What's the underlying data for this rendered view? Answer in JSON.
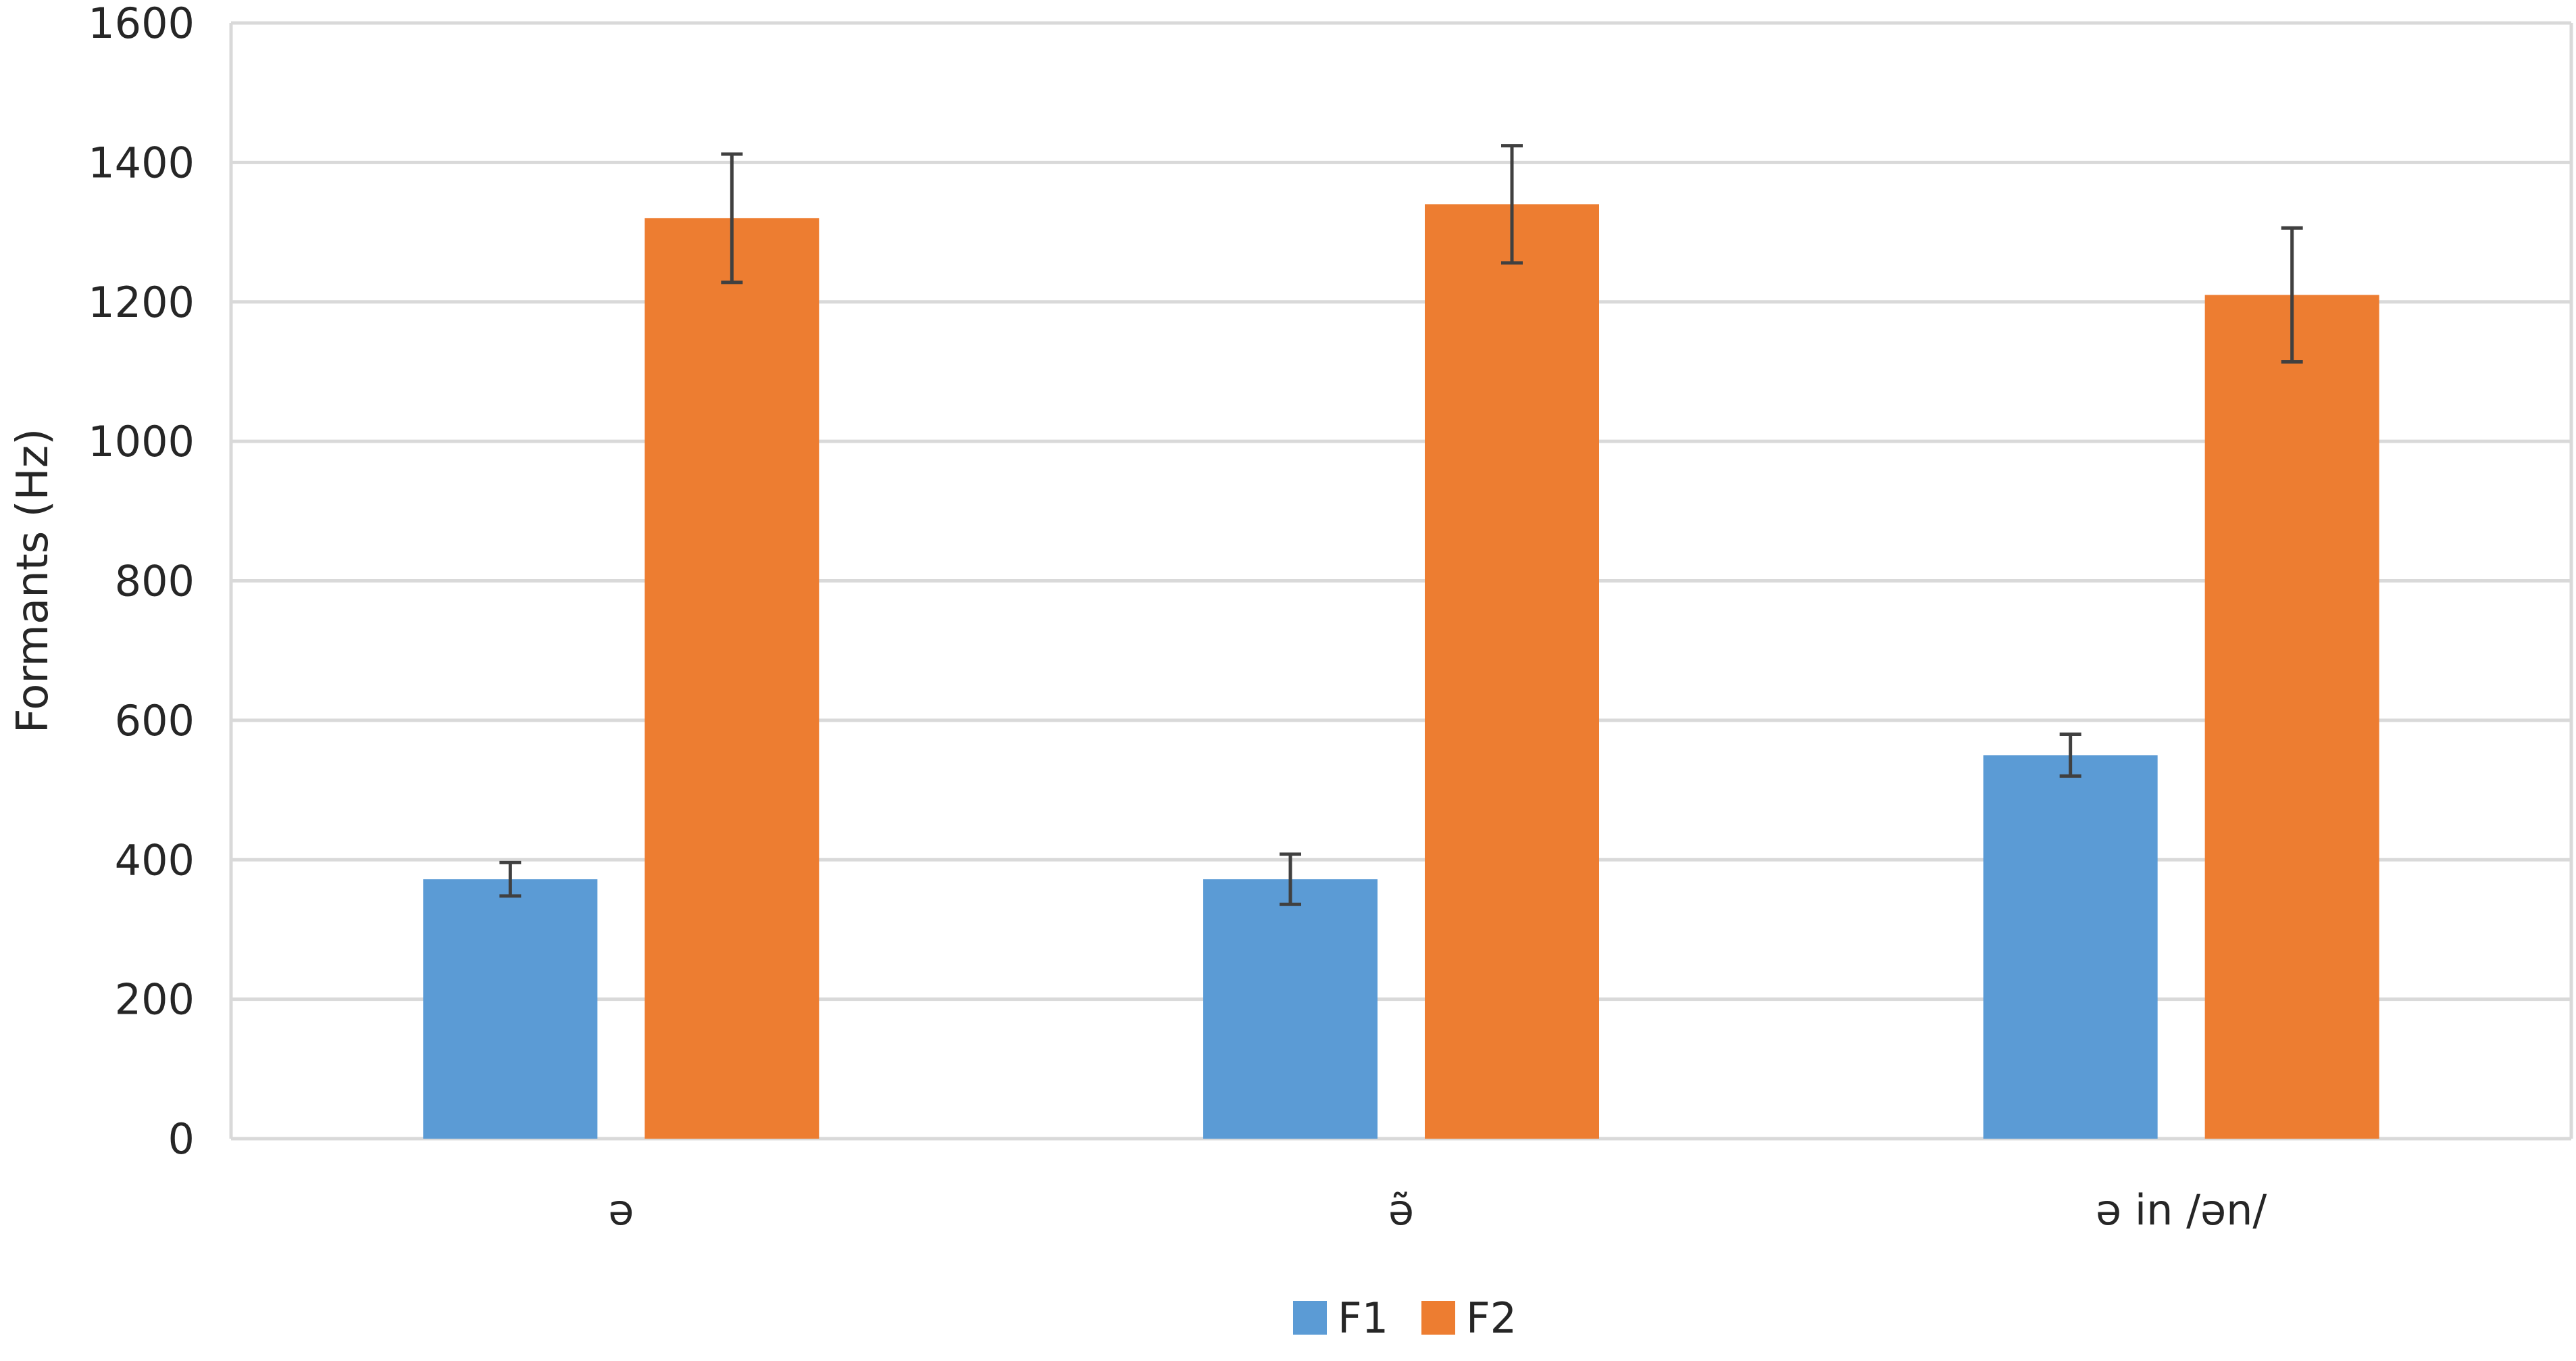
{
  "chart_data": {
    "type": "bar",
    "title": "",
    "xlabel": "",
    "ylabel": "Formants (Hz)",
    "ylim": [
      0,
      1600
    ],
    "yticks": [
      0,
      200,
      400,
      600,
      800,
      1000,
      1200,
      1400,
      1600
    ],
    "grid": true,
    "legend_position": "bottom",
    "categories": [
      "ə",
      "ə̃",
      "ə in /ən/"
    ],
    "series": [
      {
        "name": "F1",
        "color": "#5B9BD5",
        "values": [
          372,
          372,
          550
        ],
        "error": [
          24,
          36,
          30
        ]
      },
      {
        "name": "F2",
        "color": "#ED7D31",
        "values": [
          1320,
          1340,
          1210
        ],
        "error": [
          92,
          84,
          96
        ]
      }
    ]
  }
}
